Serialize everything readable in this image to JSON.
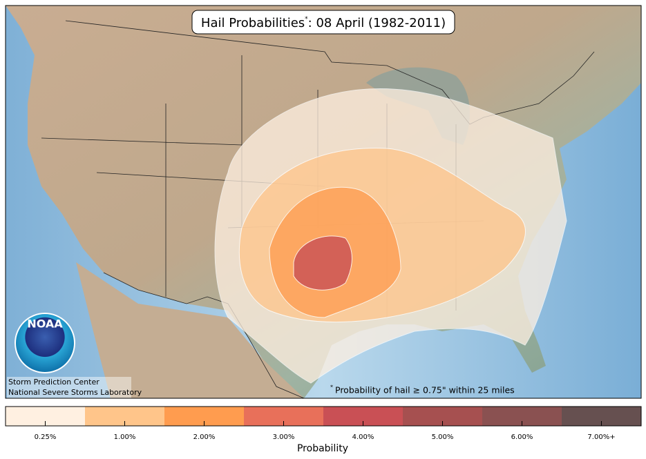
{
  "header": {
    "title": "Hail Probabilities",
    "title_marker": "*",
    "title_date": ": 08 April (1982-2011)"
  },
  "logo": {
    "text": "NOAA"
  },
  "credits": [
    "Storm Prediction Center",
    "National Severe Storms Laboratory"
  ],
  "footnote": {
    "marker": "*",
    "text": "Probability of hail ≥ 0.75\" within 25 miles"
  },
  "legend": {
    "title": "Probability",
    "items": [
      {
        "label": "0.25%",
        "color": "#fff0e1"
      },
      {
        "label": "1.00%",
        "color": "#ffc58a"
      },
      {
        "label": "2.00%",
        "color": "#ff9c4f"
      },
      {
        "label": "3.00%",
        "color": "#e8705a"
      },
      {
        "label": "4.00%",
        "color": "#c95055"
      },
      {
        "label": "5.00%",
        "color": "#a65050"
      },
      {
        "label": "6.00%",
        "color": "#8a5151"
      },
      {
        "label": "7.00%+",
        "color": "#665050"
      }
    ]
  }
}
